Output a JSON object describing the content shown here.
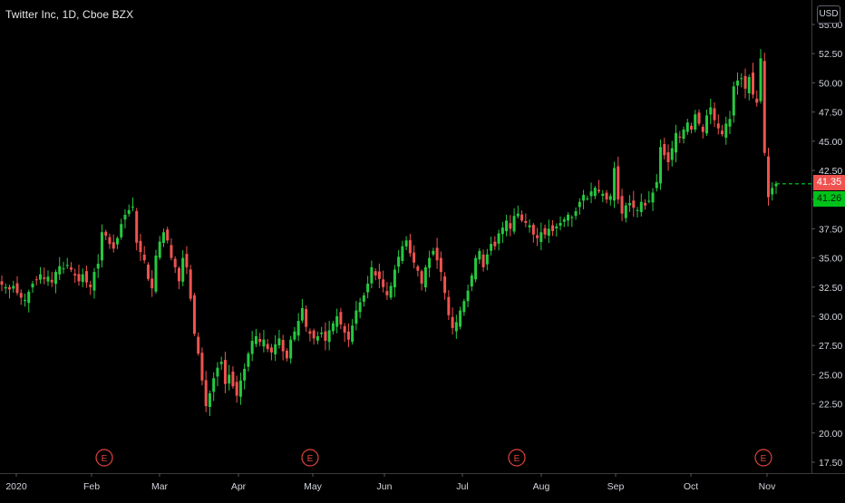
{
  "chart": {
    "title": "Twitter Inc, 1D, Cboe BZX",
    "currency": "USD",
    "last_price_label": "41.35",
    "prev_price_label": "41.26",
    "colors": {
      "up": "#26c940",
      "down": "#ef5350",
      "axis": "#444",
      "text": "#d1d4dc",
      "earnings": "#e0443c",
      "dashed": "#00d220"
    }
  },
  "chart_data": {
    "type": "candlestick",
    "title": "Twitter Inc, 1D, Cboe BZX",
    "ylim": [
      16.5,
      54.5
    ],
    "y_ticks": [
      "17.50",
      "20.00",
      "22.50",
      "25.00",
      "27.50",
      "30.00",
      "32.50",
      "35.00",
      "37.50",
      "40.00",
      "42.50",
      "45.00",
      "47.50",
      "50.00",
      "52.50",
      "55.00"
    ],
    "x_ticks": [
      "2020",
      "Feb",
      "Mar",
      "Apr",
      "May",
      "Jun",
      "Jul",
      "Aug",
      "Sep",
      "Oct",
      "Nov"
    ],
    "earnings_markers": [
      {
        "label": "E",
        "month": "Feb"
      },
      {
        "label": "E",
        "month": "May"
      },
      {
        "label": "E",
        "month": "Aug"
      },
      {
        "label": "E",
        "month": "Nov"
      }
    ],
    "last_price": 41.35,
    "series_close": [
      32.7,
      32.5,
      32.3,
      32.6,
      32.0,
      31.6,
      31.4,
      32.1,
      32.8,
      33.1,
      33.6,
      33.2,
      33.4,
      32.9,
      33.8,
      34.3,
      34.1,
      34.4,
      34.0,
      33.5,
      33.0,
      33.6,
      32.9,
      32.5,
      33.8,
      34.5,
      37.2,
      36.9,
      36.2,
      35.8,
      36.7,
      37.9,
      38.7,
      39.1,
      39.4,
      36.3,
      35.5,
      34.8,
      33.2,
      32.4,
      35.2,
      36.4,
      37.2,
      36.5,
      35.0,
      34.2,
      33.0,
      35.0,
      34.2,
      31.5,
      28.5,
      26.8,
      24.5,
      22.3,
      23.4,
      24.7,
      25.6,
      26.1,
      24.2,
      25.0,
      24.0,
      23.2,
      24.5,
      25.5,
      26.8,
      27.9,
      28.3,
      27.8,
      28.0,
      27.2,
      26.9,
      27.6,
      28.1,
      27.0,
      26.4,
      28.0,
      28.7,
      29.6,
      30.7,
      29.1,
      28.5,
      28.1,
      28.3,
      28.6,
      27.9,
      28.8,
      29.4,
      30.0,
      29.3,
      28.6,
      28.0,
      29.2,
      30.5,
      31.2,
      31.8,
      32.8,
      34.2,
      33.5,
      33.2,
      32.5,
      31.8,
      32.6,
      34.0,
      35.1,
      36.0,
      36.5,
      35.4,
      34.6,
      33.9,
      32.8,
      34.2,
      35.0,
      35.6,
      34.8,
      33.8,
      32.0,
      30.1,
      29.0,
      29.5,
      30.5,
      31.3,
      32.2,
      33.5,
      35.0,
      35.6,
      34.2,
      35.3,
      36.2,
      36.0,
      37.1,
      37.6,
      38.2,
      37.5,
      38.6,
      38.8,
      38.2,
      38.0,
      37.8,
      37.0,
      36.7,
      37.2,
      37.0,
      37.5,
      37.3,
      37.7,
      38.0,
      38.3,
      38.7,
      38.5,
      39.0,
      39.8,
      40.4,
      40.1,
      40.7,
      41.0,
      40.7,
      40.5,
      40.0,
      40.3,
      42.7,
      40.0,
      38.8,
      39.5,
      39.7,
      39.3,
      39.1,
      39.8,
      39.5,
      39.9,
      40.6,
      41.5,
      44.5,
      43.8,
      43.2,
      44.4,
      45.7,
      45.3,
      46.0,
      46.6,
      46.0,
      47.3,
      46.5,
      45.8,
      47.2,
      47.9,
      46.8,
      46.1,
      45.6,
      46.5,
      46.9,
      49.7,
      50.2,
      50.4,
      49.5,
      50.5,
      49.0,
      48.3,
      52.1,
      44.0,
      40.2,
      41.0,
      41.35
    ],
    "xlabel": "",
    "ylabel": ""
  }
}
